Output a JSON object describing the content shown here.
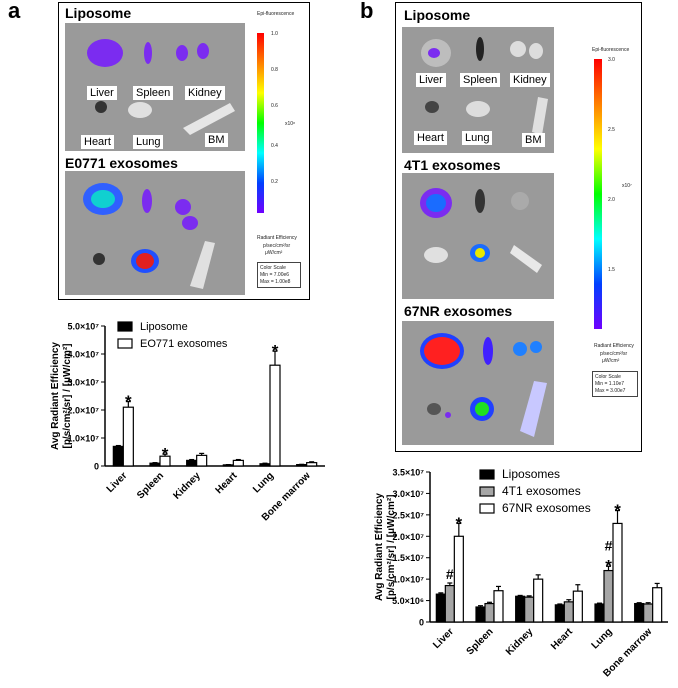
{
  "panel_labels": {
    "a": "a",
    "b": "b"
  },
  "panel_a": {
    "images": [
      {
        "title": "Liposome",
        "organ_labels": [
          "Liver",
          "Spleen",
          "Kidney",
          "Heart",
          "Lung",
          "BM"
        ]
      },
      {
        "title": "E0771 exosomes"
      }
    ],
    "colorbar": {
      "title": "Epi-fluorescence",
      "ticks": [
        "1.0",
        "0.8",
        "0.6",
        "0.4",
        "0.2"
      ],
      "multiplier": "x10⁸",
      "unit_line1": "Radiant Efficiency",
      "unit_line2": "p/sec/cm²/sr",
      "unit_line3": "μW/cm²",
      "scale_title": "Color Scale",
      "scale_min": "Min = 7.00e6",
      "scale_max": "Max = 1.00e8"
    }
  },
  "panel_b": {
    "images": [
      {
        "title": "Liposome",
        "organ_labels": [
          "Liver",
          "Spleen",
          "Kidney",
          "Heart",
          "Lung",
          "BM"
        ]
      },
      {
        "title": "4T1 exosomes"
      },
      {
        "title": "67NR exosomes"
      }
    ],
    "colorbar": {
      "title": "Epi-fluorescence",
      "ticks": [
        "3.0",
        "2.5",
        "2.0",
        "1.5"
      ],
      "multiplier": "x10⁷",
      "unit_line1": "Radiant Efficiency",
      "unit_line2": "p/sec/cm²/sr",
      "unit_line3": "μW/cm²",
      "scale_title": "Color Scale",
      "scale_min": "Min = 1.10e7",
      "scale_max": "Max = 3.00e7"
    }
  },
  "chart_data": [
    {
      "type": "bar",
      "categories": [
        "Liver",
        "Spleen",
        "Kidney",
        "Heart",
        "Lung",
        "Bone marrow"
      ],
      "ylabel_line1": "Avg Radiant Efficiency",
      "ylabel_line2": "[p/s/cm²/sr] / [μW/cm²]",
      "ylim": [
        0,
        50000000
      ],
      "yticks": [
        0,
        10000000,
        20000000,
        30000000,
        40000000,
        50000000
      ],
      "ytick_labels": [
        "0",
        "1.0×10⁷",
        "2.0×10⁷",
        "3.0×10⁷",
        "4.0×10⁷",
        "5.0×10⁷"
      ],
      "series": [
        {
          "name": "Liposome",
          "color": "#000000",
          "values": [
            7000000,
            1000000,
            2000000,
            400000,
            800000,
            500000
          ],
          "errors": [
            300000,
            200000,
            300000,
            100000,
            200000,
            100000
          ]
        },
        {
          "name": "EO771 exosomes",
          "color": "#ffffff",
          "values": [
            21000000,
            3500000,
            3800000,
            2000000,
            36000000,
            1200000
          ],
          "errors": [
            2000000,
            700000,
            700000,
            300000,
            5000000,
            300000
          ]
        }
      ],
      "annotations": [
        {
          "category": "Liver",
          "series": 1,
          "text": "*"
        },
        {
          "category": "Spleen",
          "series": 1,
          "text": "*"
        },
        {
          "category": "Lung",
          "series": 1,
          "text": "*"
        }
      ],
      "legend_position": "top-left"
    },
    {
      "type": "bar",
      "categories": [
        "Liver",
        "Spleen",
        "Kidney",
        "Heart",
        "Lung",
        "Bone marrow"
      ],
      "ylabel_line1": "Avg Radiant Efficiency",
      "ylabel_line2": "[p/s/cm²/sr] / [μW/cm²]",
      "ylim": [
        0,
        35000000
      ],
      "yticks": [
        0,
        5000000,
        10000000,
        15000000,
        20000000,
        25000000,
        30000000,
        35000000
      ],
      "ytick_labels": [
        "0",
        "5.0×10⁶",
        "1.0×10⁷",
        "1.5×10⁷",
        "2.0×10⁷",
        "2.5×10⁷",
        "3.0×10⁷",
        "3.5×10⁷"
      ],
      "series": [
        {
          "name": "Liposomes",
          "color": "#000000",
          "values": [
            6500000,
            3500000,
            6000000,
            4000000,
            4200000,
            4300000
          ],
          "errors": [
            300000,
            300000,
            200000,
            200000,
            200000,
            200000
          ]
        },
        {
          "name": "4T1 exosomes",
          "color": "#a6a6a6",
          "values": [
            8500000,
            4300000,
            5800000,
            4700000,
            12000000,
            4200000
          ],
          "errors": [
            600000,
            300000,
            300000,
            500000,
            1000000,
            300000
          ]
        },
        {
          "name": "67NR exosomes",
          "color": "#ffffff",
          "values": [
            20000000,
            7300000,
            10000000,
            7200000,
            23000000,
            8000000
          ],
          "errors": [
            3000000,
            1000000,
            1000000,
            1500000,
            3000000,
            1000000
          ]
        }
      ],
      "annotations": [
        {
          "category": "Liver",
          "series": 2,
          "text": "*"
        },
        {
          "category": "Liver",
          "series": 1,
          "text": "#"
        },
        {
          "category": "Lung",
          "series": 2,
          "text": "*"
        },
        {
          "category": "Lung",
          "series": 1,
          "text": "*"
        },
        {
          "category": "Lung",
          "series": 1,
          "text": "#"
        }
      ],
      "legend_position": "top-left"
    }
  ]
}
